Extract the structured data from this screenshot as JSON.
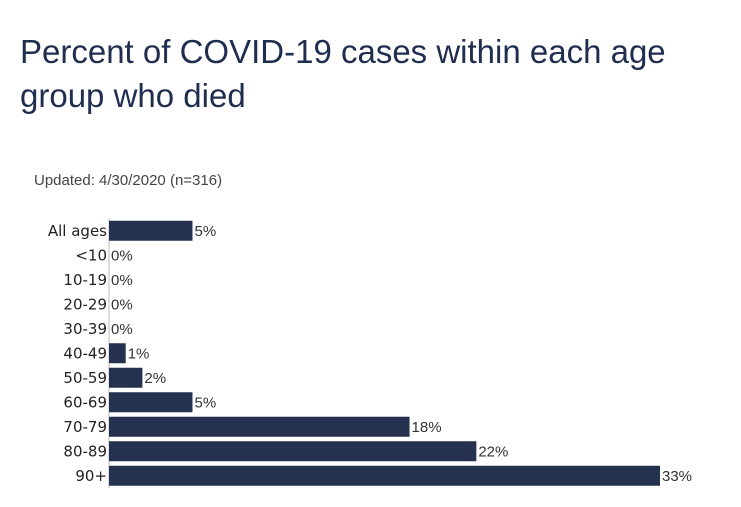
{
  "title": "Percent of COVID-19 cases within each age group who died",
  "subtitle": "Updated: 4/30/2020 (n=316)",
  "chart_data": {
    "type": "bar",
    "orientation": "horizontal",
    "title": "Percent of COVID-19 cases within each age group who died",
    "subtitle": "Updated: 4/30/2020 (n=316)",
    "categories": [
      "All ages",
      "<10",
      "10-19",
      "20-29",
      "30-39",
      "40-49",
      "50-59",
      "60-69",
      "70-79",
      "80-89",
      "90+"
    ],
    "values": [
      5,
      0,
      0,
      0,
      0,
      1,
      2,
      5,
      18,
      22,
      33
    ],
    "value_labels": [
      "5%",
      "0%",
      "0%",
      "0%",
      "0%",
      "1%",
      "2%",
      "5%",
      "18%",
      "22%",
      "33%"
    ],
    "xlabel": "",
    "ylabel": "",
    "xlim": [
      0,
      33
    ],
    "grid": false,
    "bar_color": "#25324f"
  }
}
